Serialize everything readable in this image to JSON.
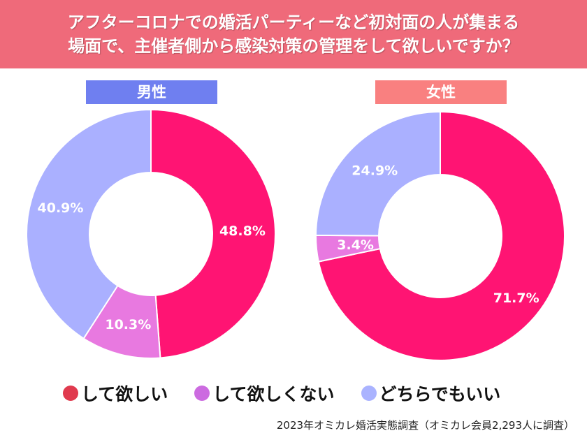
{
  "title_lines": [
    "アフターコロナでの婚活パーティーなど初対面の人が集まる",
    "場面で、主催者側から感染対策の管理をして欲しいですか？"
  ],
  "source": "2023年オミカレ婚活実態調査（オミカレ会員2,293人に調査）",
  "colors": {
    "title_bg": "#ef6a7a",
    "male_label": "#6f7ff0",
    "female_label": "#f98080"
  },
  "chart_data": [
    {
      "type": "pie",
      "donut": true,
      "title": "男性",
      "categories": [
        "して欲しい",
        "して欲しくない",
        "どちらでもいい"
      ],
      "values": [
        48.8,
        10.3,
        40.9
      ],
      "labels": [
        "48.8%",
        "10.3%",
        "40.9%"
      ],
      "colors": [
        "#ff1473",
        "#e879e0",
        "#aab0ff"
      ]
    },
    {
      "type": "pie",
      "donut": true,
      "title": "女性",
      "categories": [
        "して欲しい",
        "して欲しくない",
        "どちらでもいい"
      ],
      "values": [
        71.7,
        3.4,
        24.9
      ],
      "labels": [
        "71.7%",
        "3.4%",
        "24.9%"
      ],
      "colors": [
        "#ff1473",
        "#e879e0",
        "#aab0ff"
      ]
    }
  ],
  "legend": [
    {
      "label": "して欲しい",
      "color": "#e03a4e"
    },
    {
      "label": "して欲しくない",
      "color": "#cc6be0"
    },
    {
      "label": "どちらでもいい",
      "color": "#aab3ff"
    }
  ]
}
